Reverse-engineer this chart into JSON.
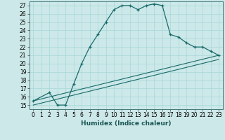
{
  "xlabel": "Humidex (Indice chaleur)",
  "xlim": [
    -0.5,
    23.5
  ],
  "ylim": [
    14.5,
    27.5
  ],
  "yticks": [
    15,
    16,
    17,
    18,
    19,
    20,
    21,
    22,
    23,
    24,
    25,
    26,
    27
  ],
  "xticks": [
    0,
    1,
    2,
    3,
    4,
    5,
    6,
    7,
    8,
    9,
    10,
    11,
    12,
    13,
    14,
    15,
    16,
    17,
    18,
    19,
    20,
    21,
    22,
    23
  ],
  "bg_color": "#cce8e8",
  "line_color": "#1a6b6b",
  "curve1_x": [
    0,
    2,
    3,
    4,
    5,
    6,
    7,
    8,
    9,
    10,
    11,
    12,
    13,
    14,
    15,
    16,
    17,
    18,
    19,
    20,
    21,
    22,
    23
  ],
  "curve1_y": [
    15.5,
    16.5,
    15.0,
    15.0,
    17.5,
    20.0,
    22.0,
    23.5,
    25.0,
    26.5,
    27.0,
    27.0,
    26.5,
    27.0,
    27.2,
    27.0,
    23.5,
    23.2,
    22.5,
    22.0,
    22.0,
    21.5,
    21.0
  ],
  "curve2_x": [
    0,
    23
  ],
  "curve2_y": [
    15.5,
    21.0
  ],
  "curve3_x": [
    0,
    23
  ],
  "curve3_y": [
    15.0,
    20.5
  ],
  "xlabel_fontsize": 6.5,
  "tick_fontsize": 5.5
}
